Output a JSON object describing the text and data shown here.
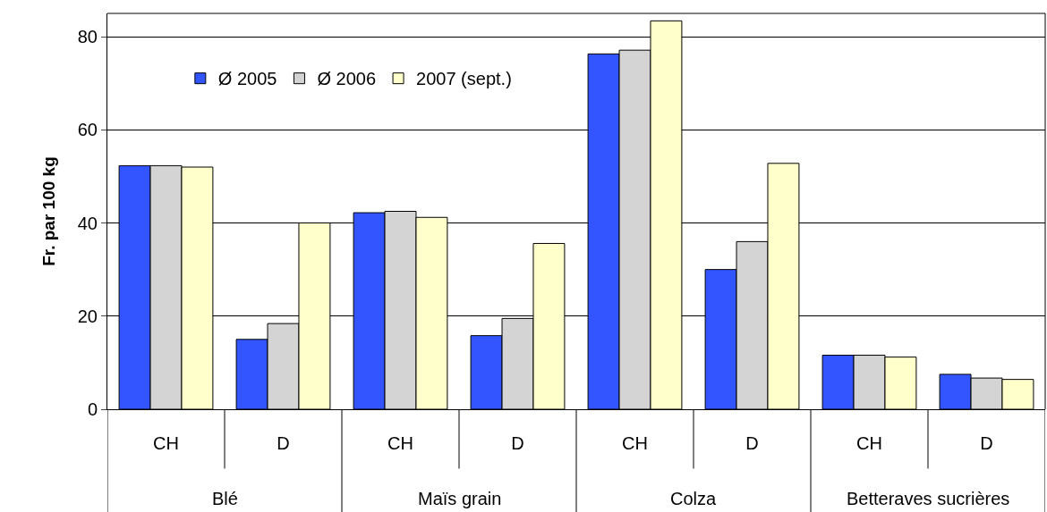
{
  "chart_data": {
    "type": "bar",
    "ylabel": "Fr. par 100 kg",
    "categories": [
      "CH",
      "D",
      "CH",
      "D",
      "CH",
      "D",
      "CH",
      "D"
    ],
    "annotations": [
      "Blé",
      "Maïs grain",
      "Colza",
      "Betteraves sucrières"
    ],
    "series": [
      {
        "name": "Ø 2005",
        "color": "#3355ff",
        "values": [
          52.3,
          15,
          42.2,
          15.8,
          76.3,
          30,
          11.6,
          7.5
        ]
      },
      {
        "name": "Ø 2006",
        "color": "#d4d4d4",
        "values": [
          52.3,
          18.4,
          42.5,
          19.5,
          77.1,
          36,
          11.6,
          6.7
        ]
      },
      {
        "name": "2007 (sept.)",
        "color": "#ffffcc",
        "values": [
          52,
          40,
          41.2,
          35.6,
          83.4,
          52.8,
          11.2,
          6.4
        ]
      }
    ],
    "ylim": [
      0,
      85
    ],
    "yticks": [
      0,
      20,
      40,
      60,
      80
    ],
    "grid": "y",
    "legend": "top left"
  }
}
